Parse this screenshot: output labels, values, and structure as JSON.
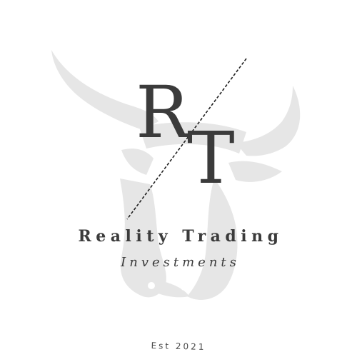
{
  "logo": {
    "monogram_left": "R",
    "monogram_right": "T",
    "name": "Reality Trading",
    "subtitle": "Investments",
    "established": "Est 2021"
  },
  "colors": {
    "ink": "#3b3b3b",
    "watermark": "#e6e6e6",
    "background": "#ffffff"
  },
  "icons": {
    "watermark": "bull-head-icon",
    "divider": "dashed-slash"
  }
}
